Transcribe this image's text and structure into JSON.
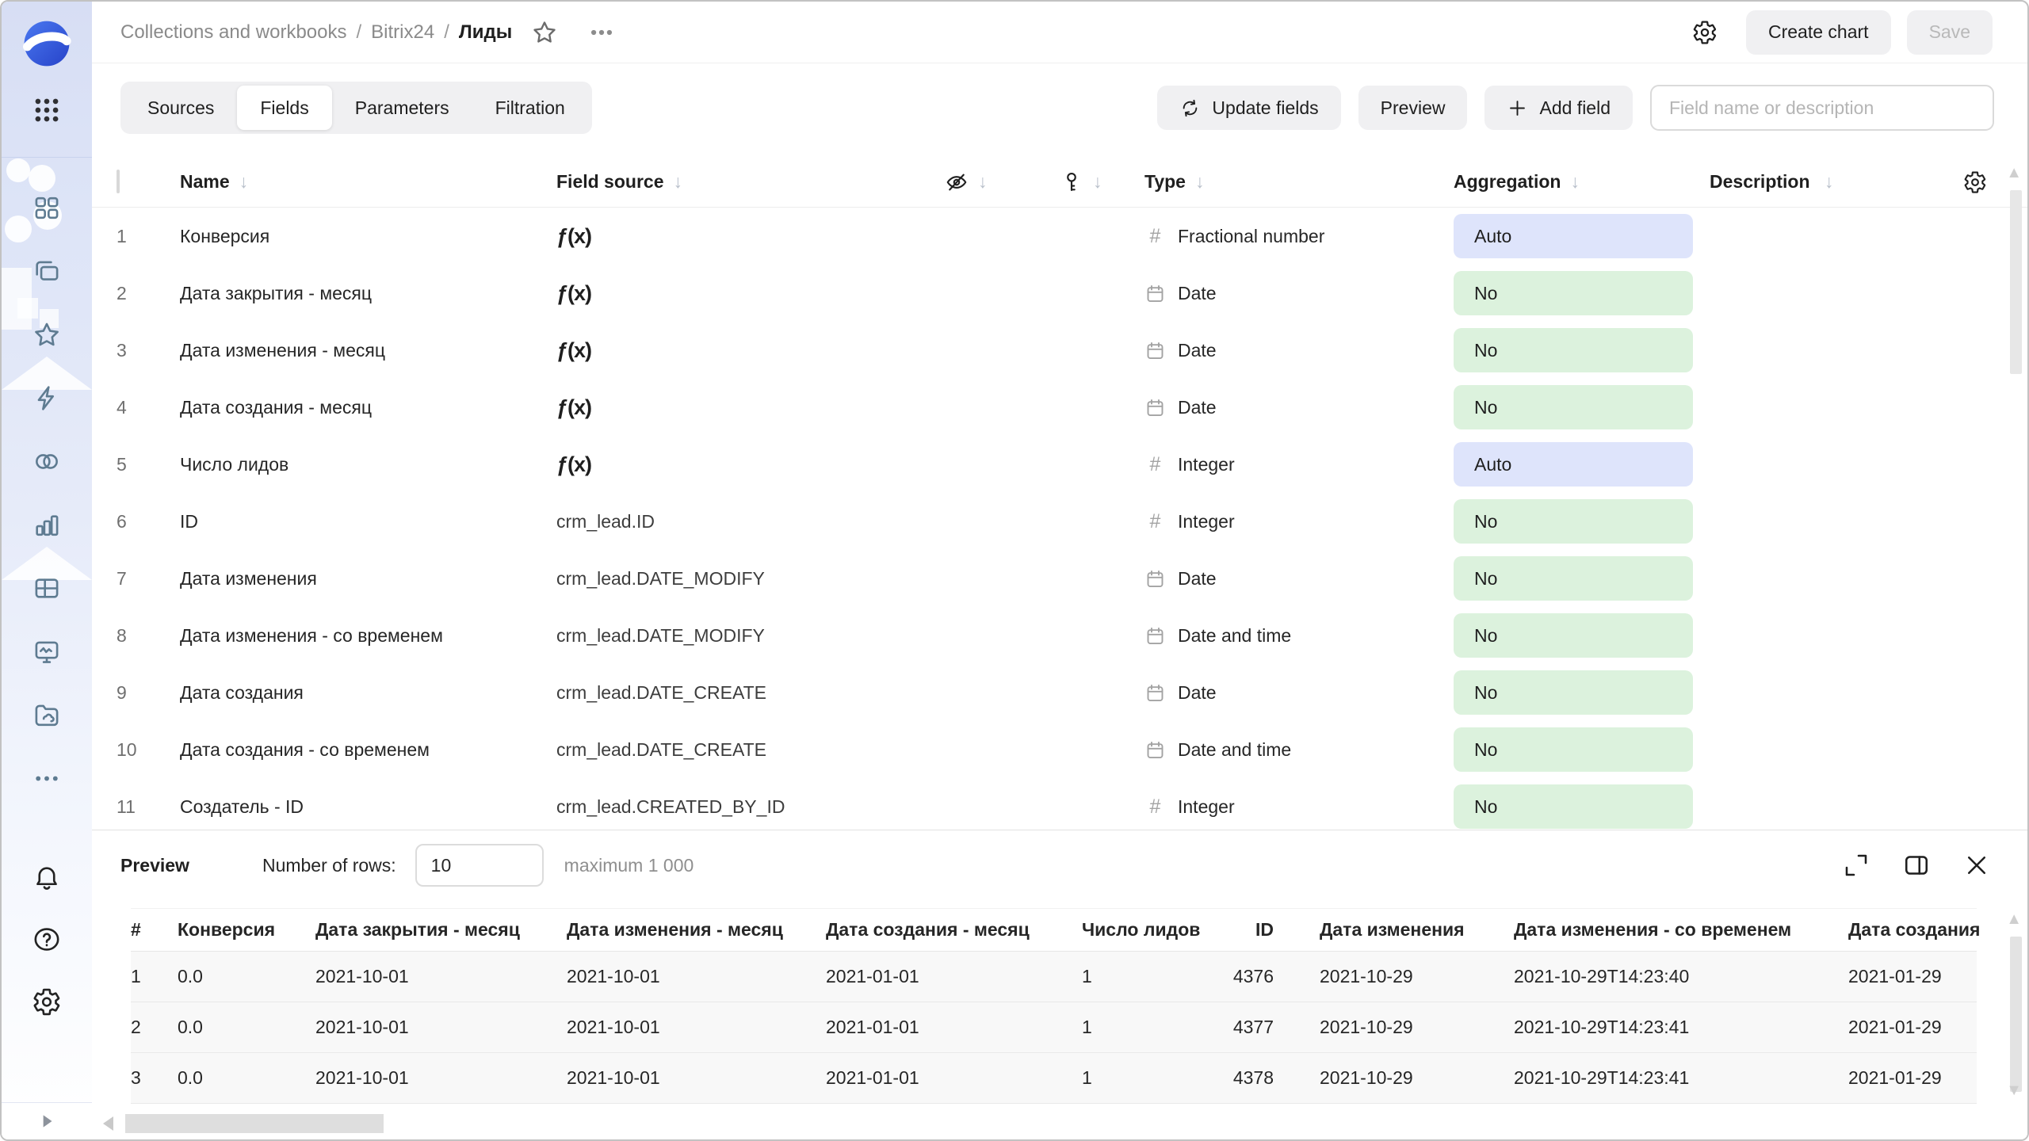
{
  "header": {
    "breadcrumbs": [
      "Collections and workbooks",
      "Bitrix24",
      "Лиды"
    ],
    "separator": "/",
    "create_chart_label": "Create chart",
    "save_label": "Save"
  },
  "toolbar": {
    "tabs": [
      {
        "label": "Sources",
        "active": false
      },
      {
        "label": "Fields",
        "active": true
      },
      {
        "label": "Parameters",
        "active": false
      },
      {
        "label": "Filtration",
        "active": false
      }
    ],
    "update_fields_label": "Update fields",
    "preview_label": "Preview",
    "add_field_label": "Add field",
    "search_placeholder": "Field name or description"
  },
  "fields_table": {
    "headers": {
      "name": "Name",
      "field_source": "Field source",
      "type": "Type",
      "aggregation": "Aggregation",
      "description": "Description"
    },
    "rows": [
      {
        "num": "1",
        "name": "Конверсия",
        "source": "",
        "formula": true,
        "type": "Fractional number",
        "type_icon": "number",
        "aggregation": "Auto"
      },
      {
        "num": "2",
        "name": "Дата закрытия - месяц",
        "source": "",
        "formula": true,
        "type": "Date",
        "type_icon": "calendar",
        "aggregation": "No"
      },
      {
        "num": "3",
        "name": "Дата изменения - месяц",
        "source": "",
        "formula": true,
        "type": "Date",
        "type_icon": "calendar",
        "aggregation": "No"
      },
      {
        "num": "4",
        "name": "Дата создания - месяц",
        "source": "",
        "formula": true,
        "type": "Date",
        "type_icon": "calendar",
        "aggregation": "No"
      },
      {
        "num": "5",
        "name": "Число лидов",
        "source": "",
        "formula": true,
        "type": "Integer",
        "type_icon": "number",
        "aggregation": "Auto"
      },
      {
        "num": "6",
        "name": "ID",
        "source": "crm_lead.ID",
        "formula": false,
        "type": "Integer",
        "type_icon": "number",
        "aggregation": "No"
      },
      {
        "num": "7",
        "name": "Дата изменения",
        "source": "crm_lead.DATE_MODIFY",
        "formula": false,
        "type": "Date",
        "type_icon": "calendar",
        "aggregation": "No"
      },
      {
        "num": "8",
        "name": "Дата изменения - со временем",
        "source": "crm_lead.DATE_MODIFY",
        "formula": false,
        "type": "Date and time",
        "type_icon": "calendar",
        "aggregation": "No"
      },
      {
        "num": "9",
        "name": "Дата создания",
        "source": "crm_lead.DATE_CREATE",
        "formula": false,
        "type": "Date",
        "type_icon": "calendar",
        "aggregation": "No"
      },
      {
        "num": "10",
        "name": "Дата создания - со временем",
        "source": "crm_lead.DATE_CREATE",
        "formula": false,
        "type": "Date and time",
        "type_icon": "calendar",
        "aggregation": "No"
      },
      {
        "num": "11",
        "name": "Создатель - ID",
        "source": "crm_lead.CREATED_BY_ID",
        "formula": false,
        "type": "Integer",
        "type_icon": "number",
        "aggregation": "No"
      }
    ]
  },
  "preview": {
    "title": "Preview",
    "rows_label": "Number of rows:",
    "rows_value": "10",
    "max_hint": "maximum 1 000",
    "columns": [
      "#",
      "Конверсия",
      "Дата закрытия - месяц",
      "Дата изменения - месяц",
      "Дата создания - месяц",
      "Число лидов",
      "ID",
      "Дата изменения",
      "Дата изменения - со временем",
      "Дата создания"
    ],
    "rows": [
      [
        "1",
        "0.0",
        "2021-10-01",
        "2021-10-01",
        "2021-01-01",
        "1",
        "4376",
        "2021-10-29",
        "2021-10-29T14:23:40",
        "2021-01-29"
      ],
      [
        "2",
        "0.0",
        "2021-10-01",
        "2021-10-01",
        "2021-01-01",
        "1",
        "4377",
        "2021-10-29",
        "2021-10-29T14:23:41",
        "2021-01-29"
      ],
      [
        "3",
        "0.0",
        "2021-10-01",
        "2021-10-01",
        "2021-01-01",
        "1",
        "4378",
        "2021-10-29",
        "2021-10-29T14:23:41",
        "2021-01-29"
      ]
    ]
  },
  "sidebar": {
    "nav_icons": [
      "squares-grid",
      "collections",
      "favorites-star",
      "lightning",
      "linked-circles",
      "bar-chart",
      "table-grid",
      "monitor-pulse",
      "folder-cloud",
      "more-ellipsis"
    ],
    "footer_icons": [
      "bell",
      "help",
      "settings"
    ]
  },
  "colors": {
    "aggregation_auto_bg": "#dee4fb",
    "aggregation_no_bg": "#dcf2dd",
    "sidebar_icon": "#5e7b91",
    "accent_logo": "#2f54d8"
  }
}
